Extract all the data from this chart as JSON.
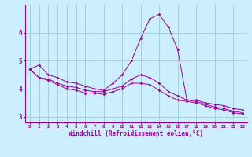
{
  "xlabel": "Windchill (Refroidissement éolien,°C)",
  "hours": [
    0,
    1,
    2,
    3,
    4,
    5,
    6,
    7,
    8,
    9,
    10,
    11,
    12,
    13,
    14,
    15,
    16,
    17,
    18,
    19,
    20,
    21,
    22,
    23
  ],
  "line_max": [
    4.7,
    4.85,
    4.5,
    4.4,
    4.25,
    4.2,
    4.1,
    4.0,
    3.95,
    4.2,
    4.5,
    5.0,
    5.8,
    6.5,
    6.65,
    6.2,
    5.4,
    3.6,
    3.6,
    3.5,
    3.45,
    3.4,
    3.3,
    3.25
  ],
  "line_mean": [
    4.7,
    4.4,
    4.35,
    4.2,
    4.1,
    4.05,
    3.95,
    3.9,
    3.9,
    4.0,
    4.1,
    4.35,
    4.5,
    4.4,
    4.2,
    3.9,
    3.75,
    3.6,
    3.55,
    3.45,
    3.35,
    3.3,
    3.2,
    3.15
  ],
  "line_min": [
    4.7,
    4.4,
    4.3,
    4.15,
    4.0,
    3.95,
    3.85,
    3.85,
    3.8,
    3.9,
    4.0,
    4.2,
    4.2,
    4.15,
    3.95,
    3.75,
    3.6,
    3.55,
    3.5,
    3.4,
    3.3,
    3.25,
    3.15,
    3.1
  ],
  "line_color": "#990099",
  "bg_color": "#cceeff",
  "plot_bg": "#cceeff",
  "grid_color": "#99cccc",
  "ylim": [
    2.8,
    7.0
  ],
  "yticks": [
    3,
    4,
    5,
    6
  ],
  "xlim": [
    -0.5,
    23.5
  ],
  "figsize": [
    3.2,
    2.0
  ],
  "dpi": 100
}
